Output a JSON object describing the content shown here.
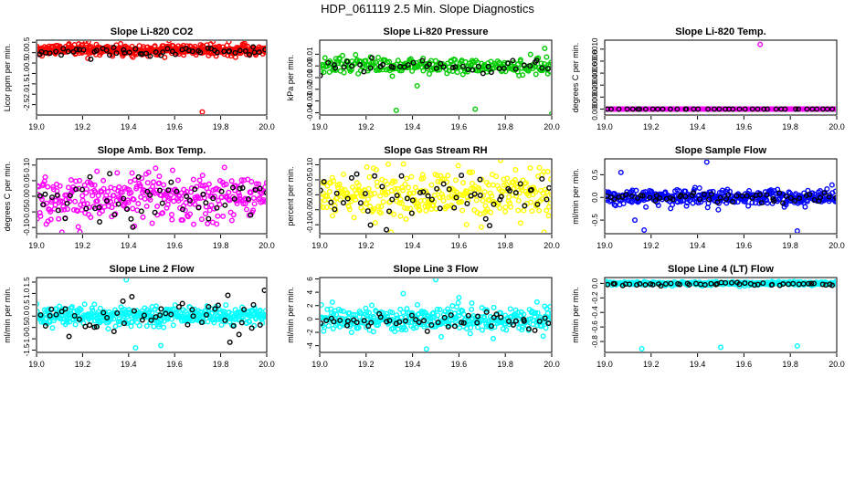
{
  "figure": {
    "title": "HDP_061119  2.5 Min. Slope Diagnostics"
  },
  "chart_data": [
    {
      "type": "scatter",
      "title": "Slope Li-820 CO2",
      "ylabel": "Licor ppm per min.",
      "xlabel": "",
      "color": "#ff0000",
      "xlim": [
        19.0,
        20.0
      ],
      "ylim": [
        -3.0,
        0.6
      ],
      "xticks": [
        19.0,
        19.2,
        19.4,
        19.6,
        19.8,
        20.0
      ],
      "xtick_labels": [
        "19.0",
        "19.2",
        "19.4",
        "19.6",
        "19.8",
        "20.0"
      ],
      "yticks": [
        -2.5,
        -2.0,
        -1.5,
        -1.0,
        -0.5,
        0.0,
        0.5
      ],
      "ytick_labels": [
        "-2.5",
        "-2.0",
        "-1.5",
        "-1.0",
        "-0.5",
        "0.0",
        "0.5"
      ],
      "series": [
        {
          "name": "bulk",
          "color": "#ff0000",
          "n": 420,
          "center": 0.12,
          "spread": 0.14,
          "seed": 11
        },
        {
          "name": "black",
          "color": "#000000",
          "n": 55,
          "center": 0.05,
          "spread": 0.14,
          "seed": 12
        }
      ],
      "outliers": [
        {
          "x": 19.72,
          "y": -2.85,
          "color": "#ff0000"
        }
      ]
    },
    {
      "type": "scatter",
      "title": "Slope Li-820 Pressure",
      "ylabel": "kPa per min.",
      "xlabel": "",
      "color": "#00cc00",
      "xlim": [
        19.0,
        20.0
      ],
      "ylim": [
        -0.042,
        0.022
      ],
      "xticks": [
        19.0,
        19.2,
        19.4,
        19.6,
        19.8,
        20.0
      ],
      "xtick_labels": [
        "19.0",
        "19.2",
        "19.4",
        "19.6",
        "19.8",
        "20.0"
      ],
      "yticks": [
        -0.04,
        -0.03,
        -0.02,
        -0.01,
        0.0,
        0.01
      ],
      "ytick_labels": [
        "-0.04",
        "-0.03",
        "-0.02",
        "-0.01",
        "0.00",
        "0.01"
      ],
      "series": [
        {
          "name": "bulk",
          "color": "#00cc00",
          "n": 260,
          "center": 0.0,
          "spread": 0.0035,
          "seed": 21
        },
        {
          "name": "black",
          "color": "#000000",
          "n": 45,
          "center": -0.001,
          "spread": 0.003,
          "seed": 22
        }
      ],
      "outliers": [
        {
          "x": 19.33,
          "y": -0.038,
          "color": "#00cc00"
        },
        {
          "x": 19.67,
          "y": -0.037,
          "color": "#00cc00"
        },
        {
          "x": 20.0,
          "y": -0.041,
          "color": "#00cc00"
        },
        {
          "x": 19.42,
          "y": -0.017,
          "color": "#00cc00"
        },
        {
          "x": 19.97,
          "y": 0.015,
          "color": "#00cc00"
        }
      ]
    },
    {
      "type": "scatter",
      "title": "Slope Li-820 Temp.",
      "ylabel": "degrees C per min.",
      "xlabel": "",
      "color": "#ff00ff",
      "xlim": [
        19.0,
        20.0
      ],
      "ylim": [
        -0.0001,
        0.00115
      ],
      "xticks": [
        19.0,
        19.2,
        19.4,
        19.6,
        19.8,
        20.0
      ],
      "xtick_labels": [
        "19.0",
        "19.2",
        "19.4",
        "19.6",
        "19.8",
        "20.0"
      ],
      "yticks": [
        0.0,
        0.0002,
        0.0004,
        0.0006,
        0.0008,
        0.001
      ],
      "ytick_labels": [
        "0.0000",
        "0.0002",
        "0.0004",
        "0.0006",
        "0.0008",
        "0.0010"
      ],
      "series": [
        {
          "name": "bulk",
          "color": "#ff00ff",
          "n": 260,
          "center": 0.0,
          "spread": 0.0,
          "seed": 31
        },
        {
          "name": "black",
          "color": "#000000",
          "n": 40,
          "center": 0.0,
          "spread": 0.0,
          "seed": 32
        }
      ],
      "outliers": [
        {
          "x": 19.67,
          "y": 0.00108,
          "color": "#ff00ff"
        }
      ]
    },
    {
      "type": "scatter",
      "title": "Slope Amb. Box Temp.",
      "ylabel": "degrees C per min.",
      "xlabel": "",
      "color": "#ff00ff",
      "xlim": [
        19.0,
        20.0
      ],
      "ylim": [
        -0.12,
        0.12
      ],
      "xticks": [
        19.0,
        19.2,
        19.4,
        19.6,
        19.8,
        20.0
      ],
      "xtick_labels": [
        "19.0",
        "19.2",
        "19.4",
        "19.6",
        "19.8",
        "20.0"
      ],
      "yticks": [
        -0.1,
        -0.05,
        0.0,
        0.05,
        0.1
      ],
      "ytick_labels": [
        "-0.10",
        "-0.05",
        "0.00",
        "0.05",
        "0.10"
      ],
      "series": [
        {
          "name": "bulk",
          "color": "#ff00ff",
          "n": 330,
          "center": 0.0,
          "spread": 0.04,
          "seed": 41
        },
        {
          "name": "black",
          "color": "#000000",
          "n": 55,
          "center": 0.0,
          "spread": 0.04,
          "seed": 42
        }
      ],
      "outliers": []
    },
    {
      "type": "scatter",
      "title": "Slope Gas Stream RH",
      "ylabel": "percent per min.",
      "xlabel": "",
      "color": "#ffff00",
      "xlim": [
        19.0,
        20.0
      ],
      "ylim": [
        -0.13,
        0.12
      ],
      "xticks": [
        19.0,
        19.2,
        19.4,
        19.6,
        19.8,
        20.0
      ],
      "xtick_labels": [
        "19.0",
        "19.2",
        "19.4",
        "19.6",
        "19.8",
        "20.0"
      ],
      "yticks": [
        -0.1,
        -0.05,
        0.0,
        0.05,
        0.1
      ],
      "ytick_labels": [
        "-0.10",
        "-0.05",
        "0.00",
        "0.05",
        "0.10"
      ],
      "series": [
        {
          "name": "bulk",
          "color": "#ffff00",
          "n": 330,
          "center": 0.0,
          "spread": 0.04,
          "seed": 51
        },
        {
          "name": "black",
          "color": "#000000",
          "n": 55,
          "center": 0.0,
          "spread": 0.04,
          "seed": 52
        }
      ],
      "outliers": []
    },
    {
      "type": "scatter",
      "title": "Slope Sample Flow",
      "ylabel": "ml/min per min.",
      "xlabel": "",
      "color": "#0000ff",
      "xlim": [
        19.0,
        20.0
      ],
      "ylim": [
        -0.8,
        0.85
      ],
      "xticks": [
        19.0,
        19.2,
        19.4,
        19.6,
        19.8,
        20.0
      ],
      "xtick_labels": [
        "19.0",
        "19.2",
        "19.4",
        "19.6",
        "19.8",
        "20.0"
      ],
      "yticks": [
        -0.5,
        0.0,
        0.5
      ],
      "ytick_labels": [
        "-0.5",
        "0.0",
        "0.5"
      ],
      "series": [
        {
          "name": "bulk",
          "color": "#0000ff",
          "n": 360,
          "center": 0.0,
          "spread": 0.09,
          "seed": 61
        },
        {
          "name": "black",
          "color": "#000000",
          "n": 55,
          "center": 0.0,
          "spread": 0.06,
          "seed": 62
        }
      ],
      "outliers": [
        {
          "x": 19.07,
          "y": 0.55,
          "color": "#0000ff"
        },
        {
          "x": 19.44,
          "y": 0.78,
          "color": "#0000ff"
        },
        {
          "x": 19.17,
          "y": -0.72,
          "color": "#0000ff"
        },
        {
          "x": 19.83,
          "y": -0.74,
          "color": "#0000ff"
        },
        {
          "x": 19.13,
          "y": -0.5,
          "color": "#0000ff"
        }
      ]
    },
    {
      "type": "scatter",
      "title": "Slope Line 2 Flow",
      "ylabel": "ml/min per min.",
      "xlabel": "",
      "color": "#00ffff",
      "xlim": [
        19.0,
        20.0
      ],
      "ylim": [
        -1.6,
        1.7
      ],
      "xticks": [
        19.0,
        19.2,
        19.4,
        19.6,
        19.8,
        20.0
      ],
      "xtick_labels": [
        "19.0",
        "19.2",
        "19.4",
        "19.6",
        "19.8",
        "20.0"
      ],
      "yticks": [
        -1.5,
        -1.0,
        -0.5,
        0.0,
        0.5,
        1.0,
        1.5
      ],
      "ytick_labels": [
        "-1.5",
        "-1.0",
        "-0.5",
        "0.0",
        "0.5",
        "1.0",
        "1.5"
      ],
      "series": [
        {
          "name": "bulk",
          "color": "#00ffff",
          "n": 420,
          "center": 0.0,
          "spread": 0.2,
          "seed": 71
        },
        {
          "name": "black",
          "color": "#000000",
          "n": 50,
          "center": 0.0,
          "spread": 0.45,
          "seed": 72
        }
      ],
      "outliers": [
        {
          "x": 19.39,
          "y": 1.6,
          "color": "#00ffff"
        },
        {
          "x": 19.43,
          "y": -1.4,
          "color": "#00ffff"
        },
        {
          "x": 19.54,
          "y": -1.3,
          "color": "#00ffff"
        },
        {
          "x": 19.84,
          "y": -1.15,
          "color": "#000000"
        }
      ]
    },
    {
      "type": "scatter",
      "title": "Slope Line 3 Flow",
      "ylabel": "ml/min per min.",
      "xlabel": "",
      "color": "#00ffff",
      "xlim": [
        19.0,
        20.0
      ],
      "ylim": [
        -5.0,
        6.2
      ],
      "xticks": [
        19.0,
        19.2,
        19.4,
        19.6,
        19.8,
        20.0
      ],
      "xtick_labels": [
        "19.0",
        "19.2",
        "19.4",
        "19.6",
        "19.8",
        "20.0"
      ],
      "yticks": [
        -4,
        -2,
        0,
        2,
        4,
        6
      ],
      "ytick_labels": [
        "-4",
        "-2",
        "0",
        "2",
        "4",
        "6"
      ],
      "series": [
        {
          "name": "bulk",
          "color": "#00ffff",
          "n": 380,
          "center": 0.0,
          "spread": 0.9,
          "seed": 81
        },
        {
          "name": "black",
          "color": "#000000",
          "n": 50,
          "center": -0.3,
          "spread": 0.7,
          "seed": 82
        }
      ],
      "outliers": [
        {
          "x": 19.5,
          "y": 5.9,
          "color": "#00ffff"
        },
        {
          "x": 19.46,
          "y": -4.5,
          "color": "#00ffff"
        },
        {
          "x": 19.6,
          "y": 3.2,
          "color": "#00ffff"
        },
        {
          "x": 19.36,
          "y": 3.8,
          "color": "#00ffff"
        }
      ]
    },
    {
      "type": "scatter",
      "title": "Slope Line 4 (LT) Flow",
      "ylabel": "ml/min per min.",
      "xlabel": "",
      "color": "#00ffff",
      "xlim": [
        19.0,
        20.0
      ],
      "ylim": [
        -0.95,
        0.08
      ],
      "xticks": [
        19.0,
        19.2,
        19.4,
        19.6,
        19.8,
        20.0
      ],
      "xtick_labels": [
        "19.0",
        "19.2",
        "19.4",
        "19.6",
        "19.8",
        "20.0"
      ],
      "yticks": [
        -0.8,
        -0.6,
        -0.4,
        -0.2,
        0.0
      ],
      "ytick_labels": [
        "-0.8",
        "-0.6",
        "-0.4",
        "-0.2",
        "0.0"
      ],
      "series": [
        {
          "name": "bulk",
          "color": "#00ffff",
          "n": 360,
          "center": 0.0,
          "spread": 0.012,
          "seed": 91
        },
        {
          "name": "black",
          "color": "#000000",
          "n": 50,
          "center": -0.01,
          "spread": 0.01,
          "seed": 92
        }
      ],
      "outliers": [
        {
          "x": 19.16,
          "y": -0.9,
          "color": "#00ffff"
        },
        {
          "x": 19.5,
          "y": -0.88,
          "color": "#00ffff"
        },
        {
          "x": 19.83,
          "y": -0.86,
          "color": "#00ffff"
        }
      ]
    }
  ]
}
